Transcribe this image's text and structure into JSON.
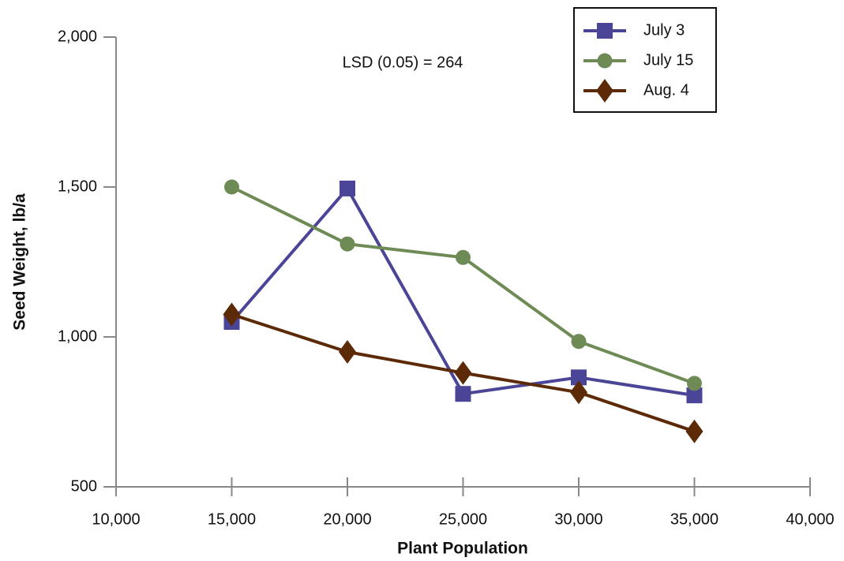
{
  "chart_data": {
    "type": "line",
    "x_label": "Plant Population",
    "y_label": "Seed Weight, lb/a",
    "annotation": "LSD (0.05) = 264",
    "x": [
      15000,
      20000,
      25000,
      30000,
      35000
    ],
    "series": [
      {
        "name": "July 3",
        "color": "#4b4597",
        "marker": "square",
        "values": [
          1050,
          1495,
          810,
          865,
          805
        ]
      },
      {
        "name": "July 15",
        "color": "#6e8b55",
        "marker": "circle",
        "values": [
          1500,
          1310,
          1265,
          985,
          845
        ]
      },
      {
        "name": "Aug. 4",
        "color": "#5c2a06",
        "marker": "diamond",
        "values": [
          1075,
          950,
          880,
          815,
          685
        ]
      }
    ],
    "xlim": [
      10000,
      40000
    ],
    "xticks": [
      {
        "value": 10000,
        "label": "10,000"
      },
      {
        "value": 15000,
        "label": "15,000"
      },
      {
        "value": 20000,
        "label": "20,000"
      },
      {
        "value": 25000,
        "label": "25,000"
      },
      {
        "value": 30000,
        "label": "30,000"
      },
      {
        "value": 35000,
        "label": "35,000"
      },
      {
        "value": 40000,
        "label": "40,000"
      }
    ],
    "ylim": [
      500,
      2000
    ],
    "yticks": [
      500,
      {
        "value": 1000,
        "label": "1,000"
      },
      {
        "value": 1500,
        "label": "1,500"
      },
      {
        "value": 2000,
        "label": "2,000"
      }
    ],
    "grid": false,
    "legend": "upper right"
  }
}
